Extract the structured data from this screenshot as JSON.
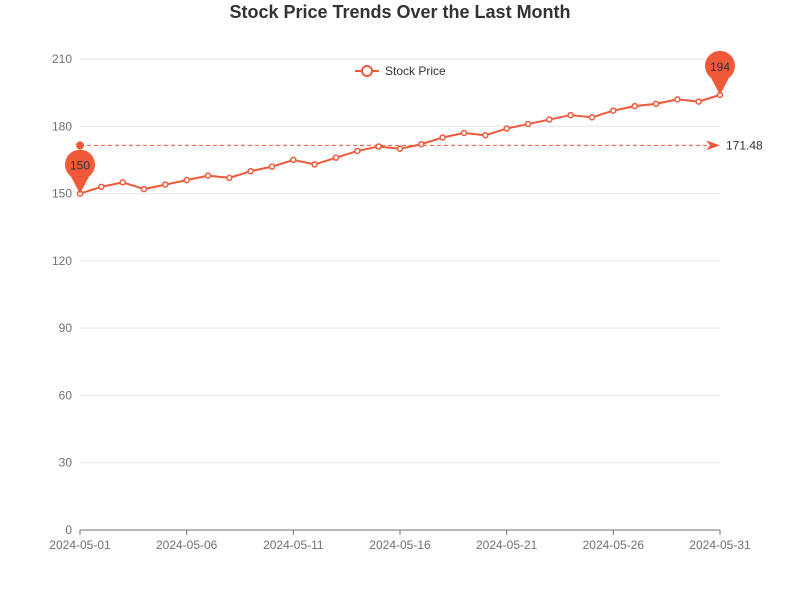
{
  "chart_data": {
    "type": "line",
    "title": "Stock Price Trends Over the Last Month",
    "xlabel": "",
    "ylabel": "",
    "x": [
      "2024-05-01",
      "2024-05-02",
      "2024-05-03",
      "2024-05-04",
      "2024-05-05",
      "2024-05-06",
      "2024-05-07",
      "2024-05-08",
      "2024-05-09",
      "2024-05-10",
      "2024-05-11",
      "2024-05-12",
      "2024-05-13",
      "2024-05-14",
      "2024-05-15",
      "2024-05-16",
      "2024-05-17",
      "2024-05-18",
      "2024-05-19",
      "2024-05-20",
      "2024-05-21",
      "2024-05-22",
      "2024-05-23",
      "2024-05-24",
      "2024-05-25",
      "2024-05-26",
      "2024-05-27",
      "2024-05-28",
      "2024-05-29",
      "2024-05-30",
      "2024-05-31"
    ],
    "series": [
      {
        "name": "Stock Price",
        "color": "#f05a3a",
        "values": [
          150,
          153,
          155,
          152,
          154,
          156,
          158,
          157,
          160,
          162,
          165,
          163,
          166,
          169,
          171,
          170,
          172,
          175,
          177,
          176,
          179,
          181,
          183,
          185,
          184,
          187,
          189,
          190,
          192,
          191,
          194
        ]
      }
    ],
    "x_tick_labels": [
      "2024-05-01",
      "2024-05-06",
      "2024-05-11",
      "2024-05-16",
      "2024-05-21",
      "2024-05-26",
      "2024-05-31"
    ],
    "y_tick_labels": [
      "0",
      "30",
      "60",
      "90",
      "120",
      "150",
      "180",
      "210"
    ],
    "ylim": [
      0,
      210
    ],
    "grid": true,
    "legend_position": "top",
    "markers": {
      "min": {
        "label": "150",
        "value": 150,
        "x": "2024-05-01"
      },
      "max": {
        "label": "194",
        "value": 194,
        "x": "2024-05-31"
      }
    },
    "average_line": {
      "value": 171.48,
      "label": "171.48"
    }
  }
}
